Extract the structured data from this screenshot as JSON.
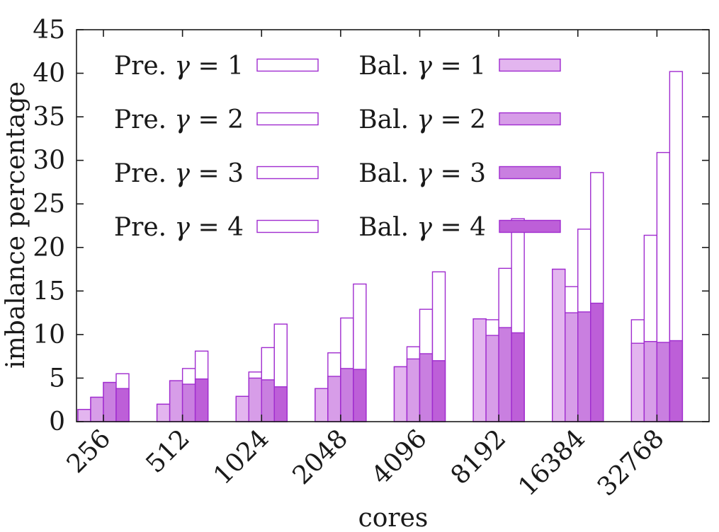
{
  "chart_data": {
    "type": "bar",
    "title": "",
    "xlabel": "cores",
    "ylabel": "imbalance percentage",
    "ylim": [
      0,
      45
    ],
    "yticks": [
      0,
      5,
      10,
      15,
      20,
      25,
      30,
      35,
      40,
      45
    ],
    "grid": false,
    "legend_placement": "top-left",
    "categories": [
      "256",
      "512",
      "1024",
      "2048",
      "4096",
      "8192",
      "16384",
      "32768"
    ],
    "gamma_symbol": "γ",
    "series": [
      {
        "name": "Pre. γ = 1",
        "prefix": "Pre.",
        "gamma": "1",
        "kind": "pre",
        "color": "#ffffff",
        "values": [
          1.4,
          2.0,
          2.9,
          3.8,
          6.3,
          11.8,
          17.5,
          11.7
        ]
      },
      {
        "name": "Bal. γ = 1",
        "prefix": "Bal.",
        "gamma": "1",
        "kind": "bal",
        "color": "#e3b5ef",
        "values": [
          1.4,
          2.0,
          2.9,
          3.8,
          6.3,
          11.8,
          17.5,
          9.0
        ]
      },
      {
        "name": "Pre. γ = 2",
        "prefix": "Pre.",
        "gamma": "2",
        "kind": "pre",
        "color": "#ffffff",
        "values": [
          2.8,
          4.7,
          5.7,
          7.9,
          8.6,
          11.7,
          15.5,
          21.4
        ]
      },
      {
        "name": "Bal. γ = 2",
        "prefix": "Bal.",
        "gamma": "2",
        "kind": "bal",
        "color": "#d79de8",
        "values": [
          2.8,
          4.7,
          5.0,
          5.2,
          7.2,
          9.9,
          12.5,
          9.2
        ]
      },
      {
        "name": "Pre. γ = 3",
        "prefix": "Pre.",
        "gamma": "3",
        "kind": "pre",
        "color": "#ffffff",
        "values": [
          4.5,
          6.1,
          8.5,
          11.9,
          12.9,
          17.6,
          22.1,
          30.9
        ]
      },
      {
        "name": "Bal. γ = 3",
        "prefix": "Bal.",
        "gamma": "3",
        "kind": "bal",
        "color": "#c97fe0",
        "values": [
          4.5,
          4.3,
          4.8,
          6.1,
          7.8,
          10.8,
          12.6,
          9.1
        ]
      },
      {
        "name": "Pre. γ = 4",
        "prefix": "Pre.",
        "gamma": "4",
        "kind": "pre",
        "color": "#ffffff",
        "values": [
          5.5,
          8.1,
          11.2,
          15.8,
          17.2,
          23.3,
          28.6,
          40.2
        ]
      },
      {
        "name": "Bal. γ = 4",
        "prefix": "Bal.",
        "gamma": "4",
        "kind": "bal",
        "color": "#bd5fd8",
        "values": [
          3.8,
          4.9,
          4.0,
          6.0,
          7.0,
          10.2,
          13.6,
          9.3
        ]
      }
    ],
    "bar_outline_color": "#a02ccf",
    "axis_color": "#1a1a1a"
  }
}
